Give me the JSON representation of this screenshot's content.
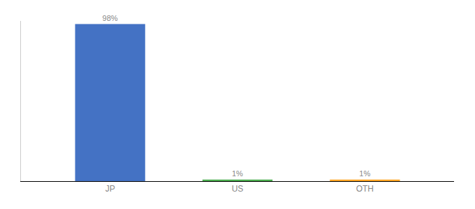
{
  "chart_data": {
    "type": "bar",
    "categories": [
      "JP",
      "US",
      "OTH"
    ],
    "values": [
      98,
      1,
      1
    ],
    "value_labels": [
      "98%",
      "1%",
      "1%"
    ],
    "colors": [
      "#4472c4",
      "#4caf50",
      "#ffa726"
    ],
    "ylim": [
      0,
      100
    ],
    "grid": false,
    "data_labels": true,
    "tick_labels": "x"
  }
}
